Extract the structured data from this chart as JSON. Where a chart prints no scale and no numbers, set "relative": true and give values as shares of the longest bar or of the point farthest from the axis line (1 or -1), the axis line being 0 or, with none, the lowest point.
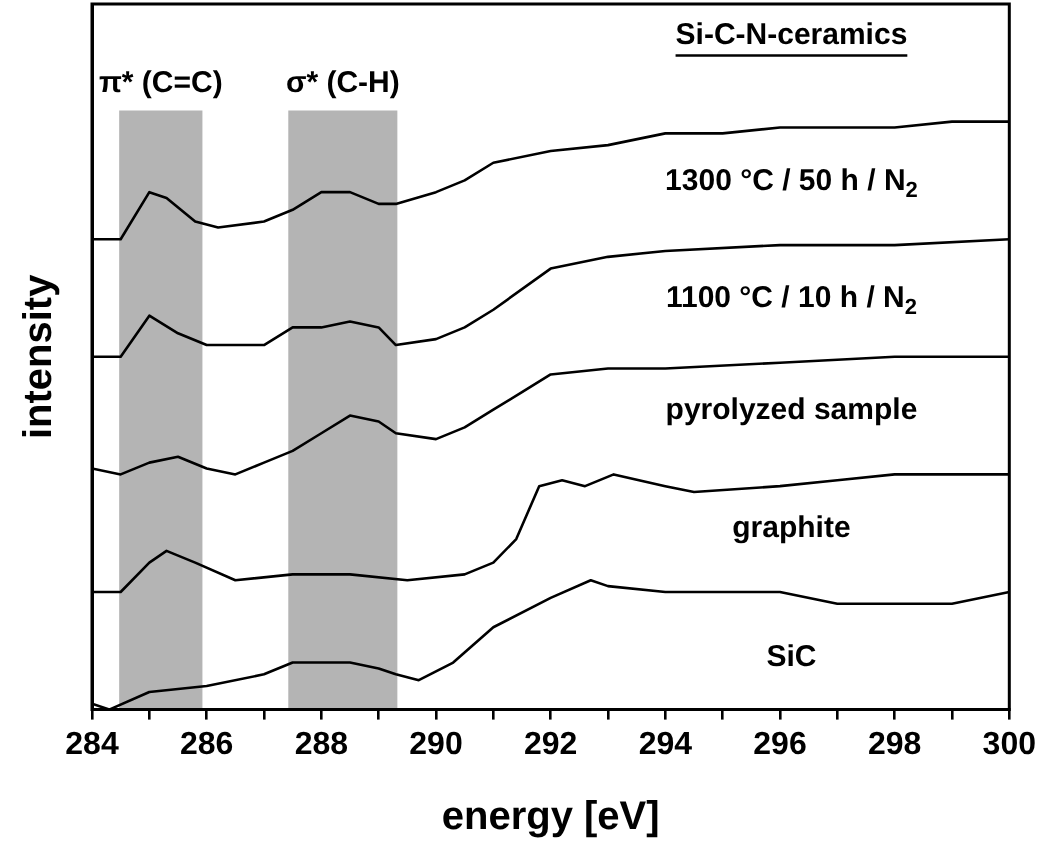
{
  "chart_data": {
    "type": "line",
    "relative": true,
    "xlabel": "energy [eV]",
    "ylabel": "intensity",
    "xlim": [
      284,
      300
    ],
    "xticks": [
      284,
      {
        "value": 285,
        "label": null
      },
      286,
      {
        "value": 287,
        "label": null
      },
      288,
      {
        "value": 289,
        "label": null
      },
      290,
      {
        "value": 291,
        "label": null
      },
      292,
      {
        "value": 293,
        "label": null
      },
      294,
      {
        "value": 295,
        "label": null
      },
      296,
      {
        "value": 297,
        "label": null
      },
      298,
      {
        "value": 299,
        "label": null
      },
      300
    ],
    "grid": false,
    "legend": false,
    "marker": "none",
    "line_style": "solid",
    "annotations": [
      "Si-C-N-ceramics"
    ],
    "bands": [
      {
        "axis": "x",
        "from": 284.5,
        "to": 285.9,
        "label": "π* (C=C)",
        "color": "#b4b4b4"
      },
      {
        "axis": "x",
        "from": 287.45,
        "to": 289.3,
        "label": "σ* (C-H)",
        "color": "#b4b4b4"
      }
    ],
    "series": [
      {
        "name": "1300 °C / 50 h / N$_{2}$",
        "color": "#000000",
        "x": [
          284,
          284.5,
          285,
          285.3,
          285.8,
          286.2,
          287,
          287.5,
          288,
          288.5,
          289,
          289.3,
          290,
          290.5,
          291,
          292,
          293,
          294,
          295,
          296,
          297,
          298,
          299,
          300
        ],
        "values": [
          0.8,
          0.8,
          0.88,
          0.87,
          0.83,
          0.82,
          0.83,
          0.85,
          0.88,
          0.88,
          0.86,
          0.86,
          0.88,
          0.9,
          0.93,
          0.95,
          0.96,
          0.98,
          0.98,
          0.99,
          0.99,
          0.99,
          1.0,
          1.0
        ]
      },
      {
        "name": "1100 °C / 10 h / N$_{2}$",
        "color": "#000000",
        "x": [
          284,
          284.5,
          285,
          285.5,
          286,
          286.5,
          287,
          287.5,
          288,
          288.5,
          289,
          289.3,
          290,
          290.5,
          291,
          292,
          293,
          294,
          296,
          298,
          300
        ],
        "values": [
          0.6,
          0.6,
          0.67,
          0.64,
          0.62,
          0.62,
          0.62,
          0.65,
          0.65,
          0.66,
          0.65,
          0.62,
          0.63,
          0.65,
          0.68,
          0.75,
          0.77,
          0.78,
          0.79,
          0.79,
          0.8
        ]
      },
      {
        "name": "pyrolyzed sample",
        "color": "#000000",
        "x": [
          284,
          284.5,
          285,
          285.5,
          286,
          286.5,
          287,
          287.5,
          288,
          288.5,
          289,
          289.3,
          290,
          290.5,
          291,
          291.5,
          292,
          293,
          294,
          296,
          298,
          300
        ],
        "values": [
          0.41,
          0.4,
          0.42,
          0.43,
          0.41,
          0.4,
          0.42,
          0.44,
          0.47,
          0.5,
          0.49,
          0.47,
          0.46,
          0.48,
          0.51,
          0.54,
          0.57,
          0.58,
          0.58,
          0.59,
          0.6,
          0.6
        ]
      },
      {
        "name": "graphite",
        "color": "#000000",
        "x": [
          284,
          284.5,
          285,
          285.3,
          285.8,
          286.5,
          287.5,
          288.5,
          289.5,
          290.5,
          291,
          291.4,
          291.8,
          292.2,
          292.6,
          293.1,
          294,
          294.5,
          296,
          297,
          298,
          299,
          300
        ],
        "values": [
          0.2,
          0.2,
          0.25,
          0.27,
          0.25,
          0.22,
          0.23,
          0.23,
          0.22,
          0.23,
          0.25,
          0.29,
          0.38,
          0.39,
          0.38,
          0.4,
          0.38,
          0.37,
          0.38,
          0.39,
          0.4,
          0.4,
          0.4
        ]
      },
      {
        "name": "SiC",
        "color": "#000000",
        "x": [
          284,
          284.3,
          285,
          286,
          287,
          287.5,
          288,
          288.5,
          289,
          289.3,
          289.7,
          290.3,
          291,
          292,
          292.7,
          293,
          294,
          295,
          296,
          297,
          298,
          299,
          300
        ],
        "values": [
          0.01,
          0.0,
          0.03,
          0.04,
          0.06,
          0.08,
          0.08,
          0.08,
          0.07,
          0.06,
          0.05,
          0.08,
          0.14,
          0.19,
          0.22,
          0.21,
          0.2,
          0.2,
          0.2,
          0.18,
          0.18,
          0.18,
          0.2
        ]
      }
    ]
  }
}
